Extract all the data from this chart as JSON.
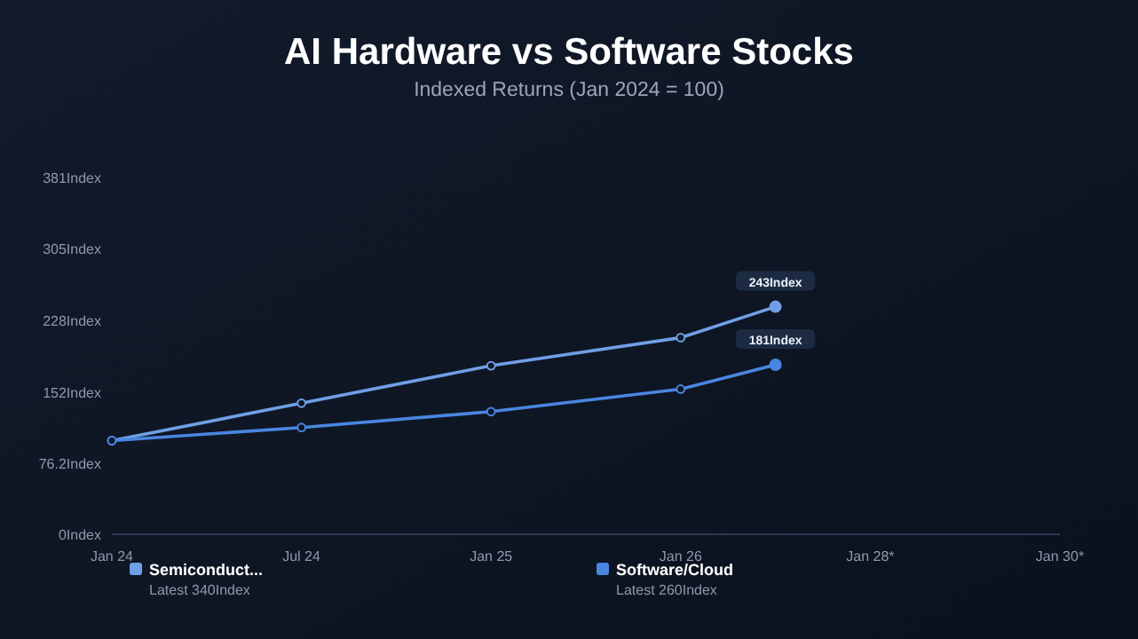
{
  "chart_data": {
    "type": "line",
    "title": "AI Hardware vs Software Stocks",
    "subtitle": "Indexed Returns (Jan 2024 = 100)",
    "categories": [
      "Jan 24",
      null,
      "Jul 24",
      null,
      "Jan 25",
      null,
      "Jan 26",
      null,
      "Jan 28*",
      null,
      "Jan 30*"
    ],
    "series": [
      {
        "name": "Semiconduct...",
        "color": "#6f9fe6",
        "values": [
          100,
          null,
          140,
          null,
          180,
          null,
          210,
          243,
          null,
          null,
          null
        ],
        "value_labels": [
          null,
          null,
          null,
          null,
          null,
          null,
          null,
          "243Index",
          null,
          null,
          null
        ]
      },
      {
        "name": "Software/Cloud",
        "color": "#4a86e0",
        "values": [
          100,
          null,
          114,
          null,
          131,
          null,
          155,
          181,
          null,
          null,
          null
        ],
        "value_labels": [
          null,
          null,
          null,
          null,
          null,
          null,
          null,
          "181Index",
          null,
          null,
          null
        ]
      }
    ],
    "annotations": [
      "Latest 340Index",
      "Latest 260Index"
    ],
    "ylim": [
      0,
      381
    ],
    "yticks": [
      {
        "value": 0,
        "label": "0Index"
      },
      {
        "value": 76.2,
        "label": "76.2Index"
      },
      {
        "value": 152,
        "label": "152Index"
      },
      {
        "value": 228,
        "label": "228Index"
      },
      {
        "value": 305,
        "label": "305Index"
      },
      {
        "value": 381,
        "label": "381Index"
      }
    ],
    "legend": "bottom",
    "marker": "circle",
    "line_style": "solid"
  }
}
